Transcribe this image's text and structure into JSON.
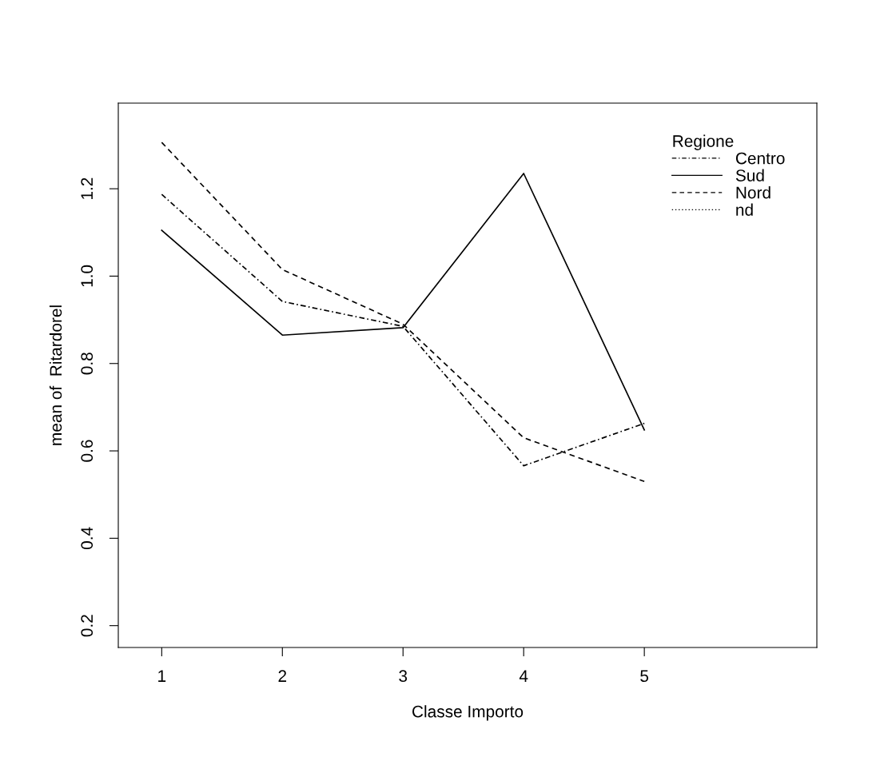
{
  "chart_data": {
    "type": "line",
    "xlabel": "Classe Importo",
    "ylabel": "mean of  Ritardorel",
    "legend_title": "Regione",
    "legend": "top right",
    "grid": false,
    "marker": "none",
    "x": [
      1,
      2,
      3,
      4,
      5
    ],
    "xlim": [
      0.64,
      6.43
    ],
    "xticks": [
      1,
      2,
      3,
      4,
      5
    ],
    "ylim": [
      0.15,
      1.396
    ],
    "yticks": [
      0.2,
      0.4,
      0.6,
      0.8,
      {
        "value": 1.0,
        "label": "1.0"
      },
      1.2
    ],
    "series": [
      {
        "name": "Centro",
        "color": "#000000",
        "line_style": "dashdot",
        "values": [
          1.187,
          0.942,
          0.885,
          0.566,
          0.663
        ]
      },
      {
        "name": "Sud",
        "color": "#000000",
        "line_style": "solid",
        "values": [
          1.105,
          0.865,
          0.882,
          1.235,
          0.648
        ]
      },
      {
        "name": "Nord",
        "color": "#000000",
        "line_style": "dashed",
        "values": [
          1.306,
          1.015,
          0.89,
          0.63,
          0.53
        ]
      },
      {
        "name": "nd",
        "color": "#000000",
        "line_style": "dotted",
        "values": [
          null,
          null,
          null,
          null,
          null
        ]
      }
    ]
  }
}
